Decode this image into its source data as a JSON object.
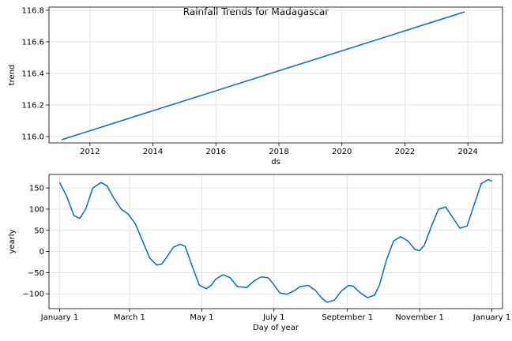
{
  "chart_data": [
    {
      "type": "line",
      "title": "Rainfall Trends for Madagascar",
      "xlabel": "ds",
      "ylabel": "trend",
      "grid": true,
      "xlim": [
        2010.7,
        2025.1
      ],
      "ylim": [
        115.96,
        116.82
      ],
      "xticks": [
        2012,
        2014,
        2016,
        2018,
        2020,
        2022,
        2024
      ],
      "xtick_labels": [
        "2012",
        "2014",
        "2016",
        "2018",
        "2020",
        "2022",
        "2024"
      ],
      "yticks": [
        116.0,
        116.2,
        116.4,
        116.6,
        116.8
      ],
      "ytick_labels": [
        "116.0",
        "116.2",
        "116.4",
        "116.6",
        "116.8"
      ],
      "series": [
        {
          "x": [
            2011.1,
            2023.9
          ],
          "y": [
            115.98,
            116.79
          ],
          "color": "#0072B2"
        }
      ]
    },
    {
      "type": "line",
      "xlabel": "Day of year",
      "ylabel": "yearly",
      "grid": true,
      "xlim": [
        -9,
        374
      ],
      "ylim": [
        -135,
        182
      ],
      "xticks": [
        0,
        59,
        120,
        181,
        243,
        304,
        365
      ],
      "xtick_labels": [
        "January 1",
        "March 1",
        "May 1",
        "July 1",
        "September 1",
        "November 1",
        "January 1"
      ],
      "yticks": [
        -100,
        -50,
        0,
        50,
        100,
        150
      ],
      "ytick_labels": [
        "−100",
        "−50",
        "0",
        "50",
        "100",
        "150"
      ],
      "series": [
        {
          "color": "#0072B2",
          "x": [
            0,
            6,
            12,
            17,
            22,
            28,
            35,
            40,
            46,
            52,
            58,
            64,
            70,
            76,
            82,
            86,
            90,
            96,
            102,
            106,
            112,
            118,
            124,
            128,
            132,
            138,
            144,
            150,
            158,
            164,
            170,
            176,
            180,
            186,
            192,
            198,
            203,
            210,
            216,
            222,
            226,
            232,
            238,
            244,
            248,
            254,
            260,
            266,
            270,
            276,
            282,
            288,
            294,
            300,
            304,
            308,
            314,
            320,
            326,
            332,
            338,
            344,
            350,
            356,
            362,
            365
          ],
          "y": [
            163,
            130,
            85,
            78,
            100,
            150,
            163,
            155,
            125,
            100,
            88,
            65,
            25,
            -15,
            -32,
            -30,
            -15,
            10,
            17,
            12,
            -35,
            -80,
            -88,
            -80,
            -65,
            -55,
            -62,
            -83,
            -85,
            -70,
            -60,
            -62,
            -75,
            -98,
            -101,
            -93,
            -83,
            -80,
            -92,
            -112,
            -120,
            -115,
            -93,
            -80,
            -82,
            -98,
            -109,
            -103,
            -80,
            -20,
            25,
            35,
            25,
            5,
            2,
            15,
            60,
            100,
            105,
            80,
            55,
            60,
            110,
            160,
            170,
            166
          ]
        }
      ]
    }
  ]
}
